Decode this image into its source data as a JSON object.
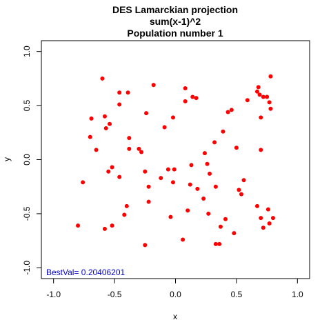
{
  "chart_data": {
    "type": "scatter",
    "title_lines": [
      "DES Lamarckian projection",
      "sum(x-1)^2",
      "Population number 1"
    ],
    "xlabel": "x",
    "ylabel": "y",
    "xlim": [
      -1.1,
      1.1
    ],
    "ylim": [
      -1.1,
      1.1
    ],
    "xticks": [
      -1.0,
      -0.5,
      0.0,
      0.5,
      1.0
    ],
    "xtick_labels": [
      "-1.0",
      "-0.5",
      "0.0",
      "0.5",
      "1.0"
    ],
    "yticks": [
      -1.0,
      -0.5,
      0.0,
      0.5,
      1.0
    ],
    "ytick_labels": [
      "-1.0",
      "-0.5",
      "0.0",
      "0.5",
      "1.0"
    ],
    "grid": false,
    "point_color": "#ff0000",
    "annotation": {
      "text": "BestVal= 0.20406201",
      "color": "#0000cc"
    },
    "points": [
      {
        "x": -0.6,
        "y": 0.75
      },
      {
        "x": -0.18,
        "y": 0.69
      },
      {
        "x": -0.46,
        "y": 0.62
      },
      {
        "x": -0.39,
        "y": 0.62
      },
      {
        "x": -0.46,
        "y": 0.51
      },
      {
        "x": -0.58,
        "y": 0.4
      },
      {
        "x": -0.69,
        "y": 0.38
      },
      {
        "x": -0.54,
        "y": 0.33
      },
      {
        "x": -0.57,
        "y": 0.29
      },
      {
        "x": -0.7,
        "y": 0.21
      },
      {
        "x": -0.38,
        "y": 0.2
      },
      {
        "x": -0.38,
        "y": 0.1
      },
      {
        "x": -0.3,
        "y": 0.1
      },
      {
        "x": -0.28,
        "y": 0.07
      },
      {
        "x": -0.65,
        "y": 0.09
      },
      {
        "x": -0.24,
        "y": 0.43
      },
      {
        "x": -0.09,
        "y": 0.3
      },
      {
        "x": -0.02,
        "y": 0.39
      },
      {
        "x": 0.08,
        "y": 0.66
      },
      {
        "x": 0.08,
        "y": 0.54
      },
      {
        "x": 0.14,
        "y": 0.58
      },
      {
        "x": 0.17,
        "y": 0.57
      },
      {
        "x": 0.24,
        "y": 0.06
      },
      {
        "x": 0.26,
        "y": -0.04
      },
      {
        "x": 0.32,
        "y": 0.16
      },
      {
        "x": 0.39,
        "y": 0.26
      },
      {
        "x": 0.43,
        "y": 0.44
      },
      {
        "x": 0.46,
        "y": 0.46
      },
      {
        "x": 0.5,
        "y": 0.11
      },
      {
        "x": 0.59,
        "y": 0.55
      },
      {
        "x": 0.67,
        "y": 0.63
      },
      {
        "x": 0.68,
        "y": 0.67
      },
      {
        "x": 0.69,
        "y": 0.6
      },
      {
        "x": 0.72,
        "y": 0.58
      },
      {
        "x": 0.75,
        "y": 0.58
      },
      {
        "x": 0.77,
        "y": 0.53
      },
      {
        "x": 0.78,
        "y": 0.77
      },
      {
        "x": 0.78,
        "y": 0.47
      },
      {
        "x": 0.7,
        "y": 0.39
      },
      {
        "x": 0.7,
        "y": 0.09
      },
      {
        "x": -0.52,
        "y": -0.07
      },
      {
        "x": -0.55,
        "y": -0.11
      },
      {
        "x": -0.46,
        "y": -0.16
      },
      {
        "x": -0.76,
        "y": -0.21
      },
      {
        "x": -0.25,
        "y": -0.11
      },
      {
        "x": -0.22,
        "y": -0.25
      },
      {
        "x": -0.22,
        "y": -0.39
      },
      {
        "x": -0.12,
        "y": -0.17
      },
      {
        "x": -0.06,
        "y": -0.09
      },
      {
        "x": -0.01,
        "y": -0.09
      },
      {
        "x": -0.02,
        "y": -0.21
      },
      {
        "x": 0.12,
        "y": -0.23
      },
      {
        "x": 0.13,
        "y": -0.05
      },
      {
        "x": 0.18,
        "y": -0.27
      },
      {
        "x": 0.23,
        "y": -0.36
      },
      {
        "x": 0.28,
        "y": -0.13
      },
      {
        "x": 0.33,
        "y": -0.25
      },
      {
        "x": 0.52,
        "y": -0.28
      },
      {
        "x": 0.54,
        "y": -0.32
      },
      {
        "x": 0.56,
        "y": -0.19
      },
      {
        "x": -0.4,
        "y": -0.43
      },
      {
        "x": -0.42,
        "y": -0.51
      },
      {
        "x": -0.8,
        "y": -0.61
      },
      {
        "x": -0.58,
        "y": -0.64
      },
      {
        "x": -0.52,
        "y": -0.61
      },
      {
        "x": -0.25,
        "y": -0.79
      },
      {
        "x": -0.04,
        "y": -0.53
      },
      {
        "x": 0.06,
        "y": -0.74
      },
      {
        "x": 0.1,
        "y": -0.47
      },
      {
        "x": 0.27,
        "y": -0.5
      },
      {
        "x": 0.33,
        "y": -0.78
      },
      {
        "x": 0.36,
        "y": -0.78
      },
      {
        "x": 0.37,
        "y": -0.62
      },
      {
        "x": 0.41,
        "y": -0.55
      },
      {
        "x": 0.48,
        "y": -0.68
      },
      {
        "x": 0.67,
        "y": -0.43
      },
      {
        "x": 0.7,
        "y": -0.54
      },
      {
        "x": 0.72,
        "y": -0.63
      },
      {
        "x": 0.76,
        "y": -0.46
      },
      {
        "x": 0.77,
        "y": -0.59
      },
      {
        "x": 0.8,
        "y": -0.54
      }
    ]
  }
}
